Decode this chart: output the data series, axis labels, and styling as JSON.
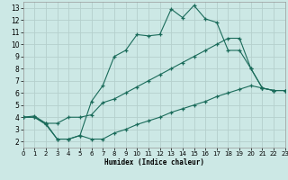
{
  "xlabel": "Humidex (Indice chaleur)",
  "bg_color": "#cce8e5",
  "grid_color": "#b5d0cd",
  "line_color": "#1a6b5a",
  "xlim": [
    0,
    23
  ],
  "ylim": [
    1.5,
    13.5
  ],
  "xticks": [
    0,
    1,
    2,
    3,
    4,
    5,
    6,
    7,
    8,
    9,
    10,
    11,
    12,
    13,
    14,
    15,
    16,
    17,
    18,
    19,
    20,
    21,
    22,
    23
  ],
  "yticks": [
    2,
    3,
    4,
    5,
    6,
    7,
    8,
    9,
    10,
    11,
    12,
    13
  ],
  "line_top_x": [
    0,
    1,
    2,
    3,
    4,
    5,
    6,
    7,
    8,
    9,
    10,
    11,
    12,
    13,
    14,
    15,
    16,
    17,
    18,
    19,
    20,
    21,
    22,
    23
  ],
  "line_top_y": [
    4.0,
    4.1,
    3.5,
    2.2,
    2.2,
    2.5,
    5.3,
    6.6,
    9.0,
    9.5,
    10.8,
    10.7,
    10.8,
    12.9,
    12.2,
    13.2,
    12.1,
    11.8,
    9.5,
    9.5,
    8.0,
    6.4,
    6.2,
    6.2
  ],
  "line_mid_x": [
    0,
    1,
    2,
    3,
    4,
    5,
    6,
    7,
    8,
    9,
    10,
    11,
    12,
    13,
    14,
    15,
    16,
    17,
    18,
    19,
    20,
    21,
    22,
    23
  ],
  "line_mid_y": [
    4.0,
    4.0,
    3.5,
    3.5,
    4.0,
    4.0,
    4.2,
    5.2,
    5.5,
    6.0,
    6.5,
    7.0,
    7.5,
    8.0,
    8.5,
    9.0,
    9.5,
    10.0,
    10.5,
    10.5,
    8.0,
    6.4,
    6.2,
    6.2
  ],
  "line_bot_x": [
    0,
    1,
    2,
    3,
    4,
    5,
    6,
    7,
    8,
    9,
    10,
    11,
    12,
    13,
    14,
    15,
    16,
    17,
    18,
    19,
    20,
    21,
    22,
    23
  ],
  "line_bot_y": [
    4.0,
    4.0,
    3.4,
    2.2,
    2.2,
    2.5,
    2.2,
    2.2,
    2.7,
    3.0,
    3.4,
    3.7,
    4.0,
    4.4,
    4.7,
    5.0,
    5.3,
    5.7,
    6.0,
    6.3,
    6.6,
    6.4,
    6.2,
    6.2
  ]
}
